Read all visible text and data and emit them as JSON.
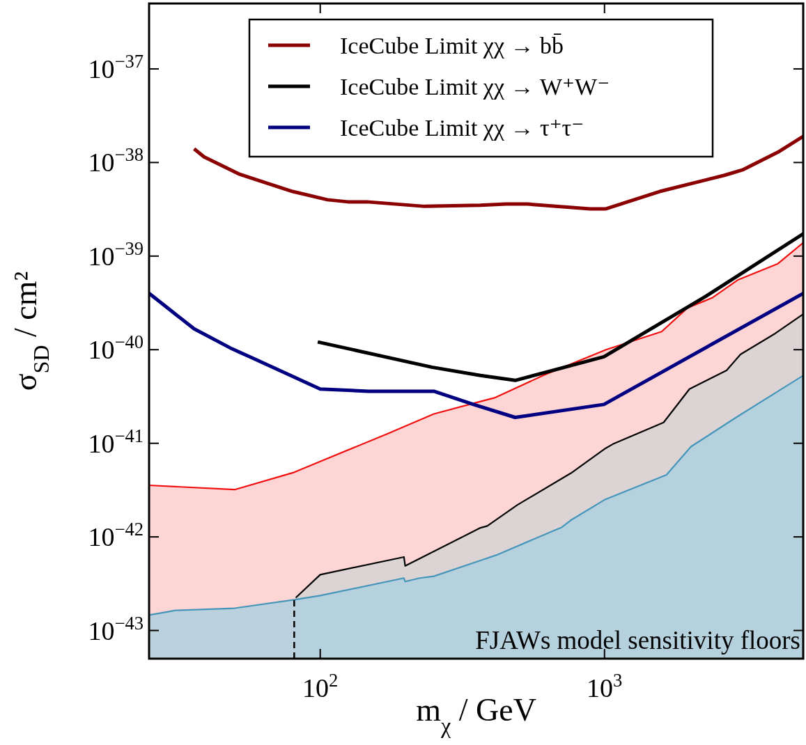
{
  "chart_data": {
    "type": "line",
    "xlabel": "m$_{χ}$ / GeV",
    "ylabel": "σ$_{SD}$ / cm²",
    "log": "xy",
    "xlim": [
      25,
      5000
    ],
    "ylim": [
      5e-44,
      5e-37
    ],
    "xticks": [
      {
        "value": 100,
        "label": "10$^{2}$"
      },
      {
        "value": 1000,
        "label": "10$^{3}$"
      }
    ],
    "yticks": [
      {
        "value": 1e-43,
        "label": "10$^{−43}$"
      },
      {
        "value": 1e-42,
        "label": "10$^{−42}$"
      },
      {
        "value": 1e-41,
        "label": "10$^{−41}$"
      },
      {
        "value": 1e-40,
        "label": "10$^{−40}$"
      },
      {
        "value": 1e-39,
        "label": "10$^{−39}$"
      },
      {
        "value": 1e-38,
        "label": "10$^{−38}$"
      },
      {
        "value": 1e-37,
        "label": "10$^{−37}$"
      }
    ],
    "grid": false,
    "legend": "top",
    "annotations": [
      "FJAWs model sensitivity floors"
    ],
    "series": [
      {
        "type": "area",
        "color": "#fccaca",
        "x": [
          25,
          50,
          81,
          100,
          173,
          251,
          366,
          410,
          608,
          1012,
          1589,
          1959,
          2400,
          2955,
          4074,
          5000
        ],
        "values": [
          3.56e-42,
          3.2e-42,
          4.9e-42,
          6.4e-42,
          1.27e-41,
          2.06e-41,
          2.8e-41,
          3.06e-41,
          5.3e-41,
          1e-40,
          1.56e-40,
          2.8e-40,
          3.6e-40,
          5.6e-40,
          8.3e-40,
          1.39e-39
        ]
      },
      {
        "type": "area",
        "color": "#d3d3d3",
        "x": [
          82,
          100,
          197,
          199,
          366,
          387,
          494,
          762,
          1000,
          1070,
          1614,
          1990,
          2687,
          3008,
          3984,
          5000
        ],
        "values": [
          2.24e-43,
          3.95e-43,
          6.1e-43,
          4.9e-43,
          1.25e-42,
          1.31e-42,
          2.2e-42,
          4.8e-42,
          8.7e-42,
          9.8e-42,
          1.67e-41,
          3.8e-41,
          6e-41,
          8.9e-41,
          1.49e-40,
          2.4e-40
        ]
      },
      {
        "type": "area",
        "color": "#abcfe0",
        "x": [
          25,
          31,
          50,
          81,
          100,
          197,
          199,
          224,
          251,
          366,
          417,
          708,
          762,
          1000,
          1652,
          2014,
          2904,
          5000
        ],
        "values": [
          1.46e-43,
          1.64e-43,
          1.73e-43,
          2.13e-43,
          2.36e-43,
          3.63e-43,
          3.33e-43,
          3.63e-43,
          3.8e-43,
          5.6e-43,
          6.4e-43,
          1.27e-42,
          1.51e-42,
          2.49e-42,
          4.6e-42,
          9.2e-42,
          1.89e-41,
          5.3e-41
        ]
      },
      {
        "color": "#000000",
        "line_style": "dashed",
        "x": [
          81,
          81
        ],
        "values": [
          5e-44,
          2.13e-43
        ]
      },
      {
        "name": "IceCube Limit χχ → bb̄",
        "color": "#8b0000",
        "x": [
          36,
          39,
          52,
          65,
          80,
          106,
          125,
          146,
          233,
          366,
          451,
          534,
          889,
          1012,
          1563,
          2642,
          3078,
          4074,
          5000
        ],
        "values": [
          1.4e-38,
          1.15e-38,
          7.5e-39,
          6e-39,
          4.9e-39,
          4e-39,
          3.8e-39,
          3.8e-39,
          3.4e-39,
          3.5e-39,
          3.6e-39,
          3.6e-39,
          3.2e-39,
          3.2e-39,
          4.9e-39,
          7.3e-39,
          8.4e-39,
          1.29e-38,
          1.9e-38
        ]
      },
      {
        "name": "IceCube Limit χχ → W⁺W⁻",
        "color": "#000000",
        "x": [
          98,
          247,
          366,
          485,
          995,
          2265,
          5000
        ],
        "values": [
          1.21e-40,
          6.5e-41,
          5.3e-41,
          4.7e-41,
          8.4e-41,
          3.7e-40,
          1.73e-39
        ]
      },
      {
        "name": "IceCube Limit χχ → τ⁺τ⁻",
        "color": "#000080",
        "x": [
          25,
          36,
          49,
          58,
          100,
          148,
          251,
          346,
          485,
          995,
          5000
        ],
        "values": [
          4e-40,
          1.67e-40,
          1.02e-40,
          8.1e-41,
          3.8e-41,
          3.6e-41,
          3.6e-41,
          2.6e-41,
          1.89e-41,
          2.6e-41,
          4e-40
        ]
      }
    ]
  }
}
